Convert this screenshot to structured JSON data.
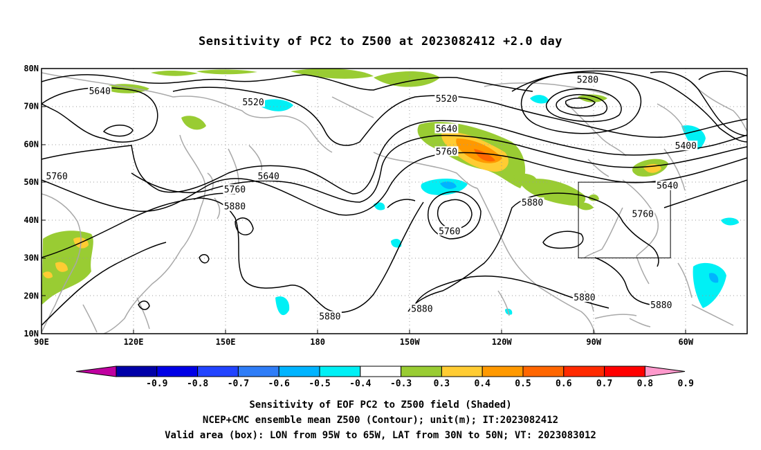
{
  "title": "Sensitivity of PC2 to Z500 at 2023082412 +2.0 day",
  "map": {
    "lat_labels": [
      {
        "text": "80N",
        "lat": 80
      },
      {
        "text": "70N",
        "lat": 70
      },
      {
        "text": "60N",
        "lat": 60
      },
      {
        "text": "50N",
        "lat": 50
      },
      {
        "text": "40N",
        "lat": 40
      },
      {
        "text": "30N",
        "lat": 30
      },
      {
        "text": "20N",
        "lat": 20
      },
      {
        "text": "10N",
        "lat": 10
      }
    ],
    "lon_labels": [
      {
        "text": "90E",
        "lon": 90
      },
      {
        "text": "120E",
        "lon": 120
      },
      {
        "text": "150E",
        "lon": 150
      },
      {
        "text": "180",
        "lon": 180
      },
      {
        "text": "150W",
        "lon": 210
      },
      {
        "text": "120W",
        "lon": 240
      },
      {
        "text": "90W",
        "lon": 270
      },
      {
        "text": "60W",
        "lon": 300
      }
    ],
    "lon_range": [
      90,
      320
    ],
    "lat_range": [
      10,
      80
    ],
    "contour_labels": [
      {
        "text": "5640",
        "lon": 109,
        "lat": 74
      },
      {
        "text": "5520",
        "lon": 159,
        "lat": 71
      },
      {
        "text": "5760",
        "lon": 95,
        "lat": 51.5
      },
      {
        "text": "5640",
        "lon": 164,
        "lat": 51.5
      },
      {
        "text": "5760",
        "lon": 153,
        "lat": 48
      },
      {
        "text": "5880",
        "lon": 153,
        "lat": 43.5
      },
      {
        "text": "5520",
        "lon": 222,
        "lat": 72
      },
      {
        "text": "5640",
        "lon": 222,
        "lat": 64
      },
      {
        "text": "5760",
        "lon": 222,
        "lat": 58
      },
      {
        "text": "5280",
        "lon": 268,
        "lat": 77
      },
      {
        "text": "5400",
        "lon": 300,
        "lat": 59.5
      },
      {
        "text": "5640",
        "lon": 294,
        "lat": 49
      },
      {
        "text": "5880",
        "lon": 250,
        "lat": 44.5
      },
      {
        "text": "5760",
        "lon": 286,
        "lat": 41.5
      },
      {
        "text": "5760",
        "lon": 223,
        "lat": 37
      },
      {
        "text": "5880",
        "lon": 184,
        "lat": 14.5
      },
      {
        "text": "5880",
        "lon": 214,
        "lat": 16.5
      },
      {
        "text": "5880",
        "lon": 267,
        "lat": 19.5
      },
      {
        "text": "5880",
        "lon": 292,
        "lat": 17.5
      }
    ],
    "valid_box": {
      "lon_min": 265,
      "lon_max": 295,
      "lat_min": 30,
      "lat_max": 50
    }
  },
  "colorbar": {
    "colors": [
      "#c000a0",
      "#0000a8",
      "#0000e6",
      "#2244ff",
      "#2f7df7",
      "#00b4ff",
      "#00f0f5",
      "#ffffff",
      "#99cc33",
      "#ffcc33",
      "#ff9900",
      "#ff6600",
      "#ff2a00",
      "#ff0000",
      "#ff99cc"
    ],
    "ticks": [
      "-0.9",
      "-0.8",
      "-0.7",
      "-0.6",
      "-0.5",
      "-0.4",
      "-0.3",
      "0.3",
      "0.4",
      "0.5",
      "0.6",
      "0.7",
      "0.8",
      "0.9"
    ]
  },
  "footer": {
    "line1": "Sensitivity of EOF PC2 to Z500 field (Shaded)",
    "line2": "NCEP+CMC ensemble mean Z500 (Contour); unit(m); IT:2023082412",
    "line3": "Valid area (box): LON from 95W to 65W, LAT from 30N to 50N; VT: 2023083012"
  }
}
